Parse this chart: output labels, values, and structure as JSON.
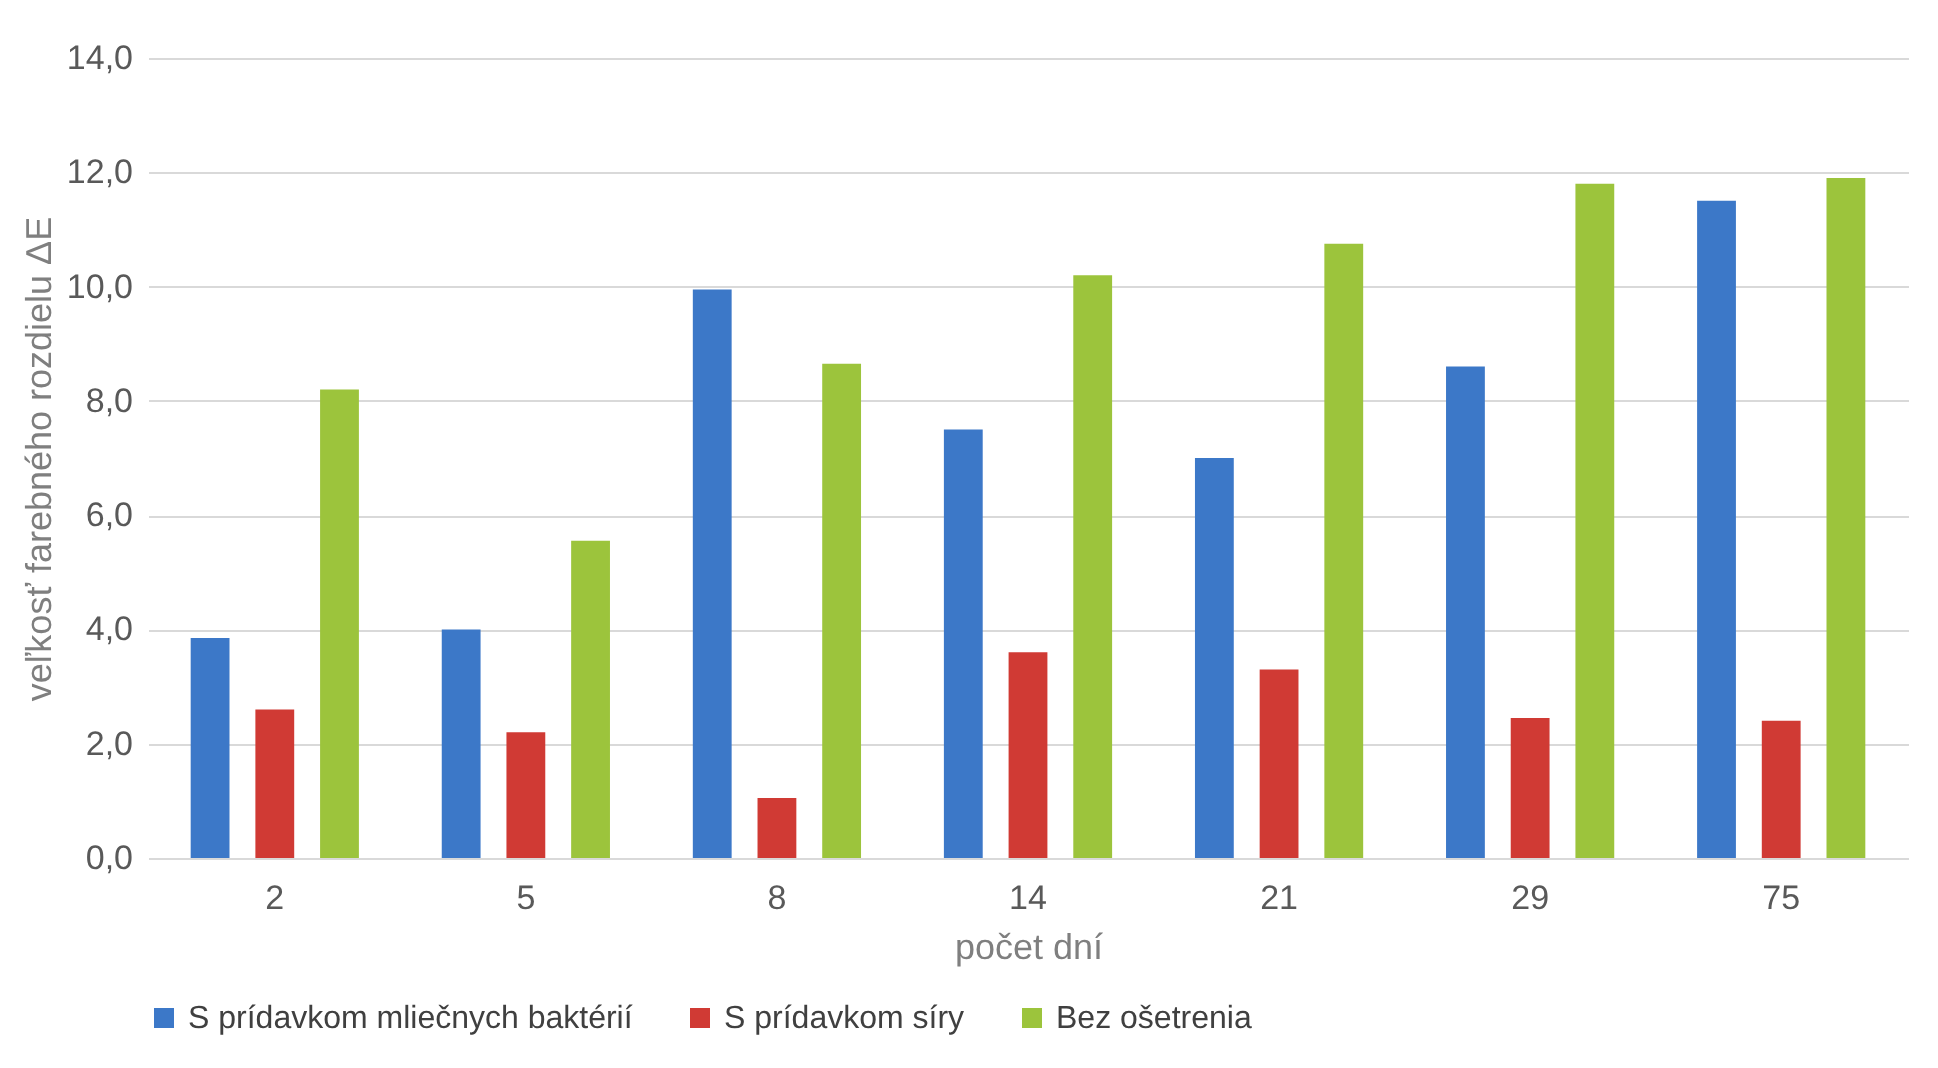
{
  "chart_data": {
    "type": "bar",
    "xlabel": "počet dní",
    "ylabel": "veľkosť farebného rozdielu ΔE",
    "categories": [
      "2",
      "5",
      "8",
      "14",
      "21",
      "29",
      "75"
    ],
    "series": [
      {
        "name": "S prídavkom mliečnych baktérií",
        "color": "#3c78c8",
        "values": [
          3.85,
          4.0,
          9.95,
          7.5,
          7.0,
          8.6,
          11.5
        ]
      },
      {
        "name": "S prídavkom síry",
        "color": "#d03a34",
        "values": [
          2.6,
          2.2,
          1.05,
          3.6,
          3.3,
          2.45,
          2.4
        ]
      },
      {
        "name": "Bez ošetrenia",
        "color": "#9cc43c",
        "values": [
          8.2,
          5.55,
          8.65,
          10.2,
          10.75,
          11.8,
          11.9
        ]
      }
    ],
    "ylim": [
      0,
      14
    ],
    "yticks": [
      {
        "value": 0,
        "label": "0,0"
      },
      {
        "value": 2,
        "label": "2,0"
      },
      {
        "value": 4,
        "label": "4,0"
      },
      {
        "value": 6,
        "label": "6,0"
      },
      {
        "value": 8,
        "label": "8,0"
      },
      {
        "value": 10,
        "label": "10,0"
      },
      {
        "value": 12,
        "label": "12,0"
      },
      {
        "value": 14,
        "label": "14,0"
      }
    ],
    "grid": "y",
    "legend": "bottom"
  }
}
